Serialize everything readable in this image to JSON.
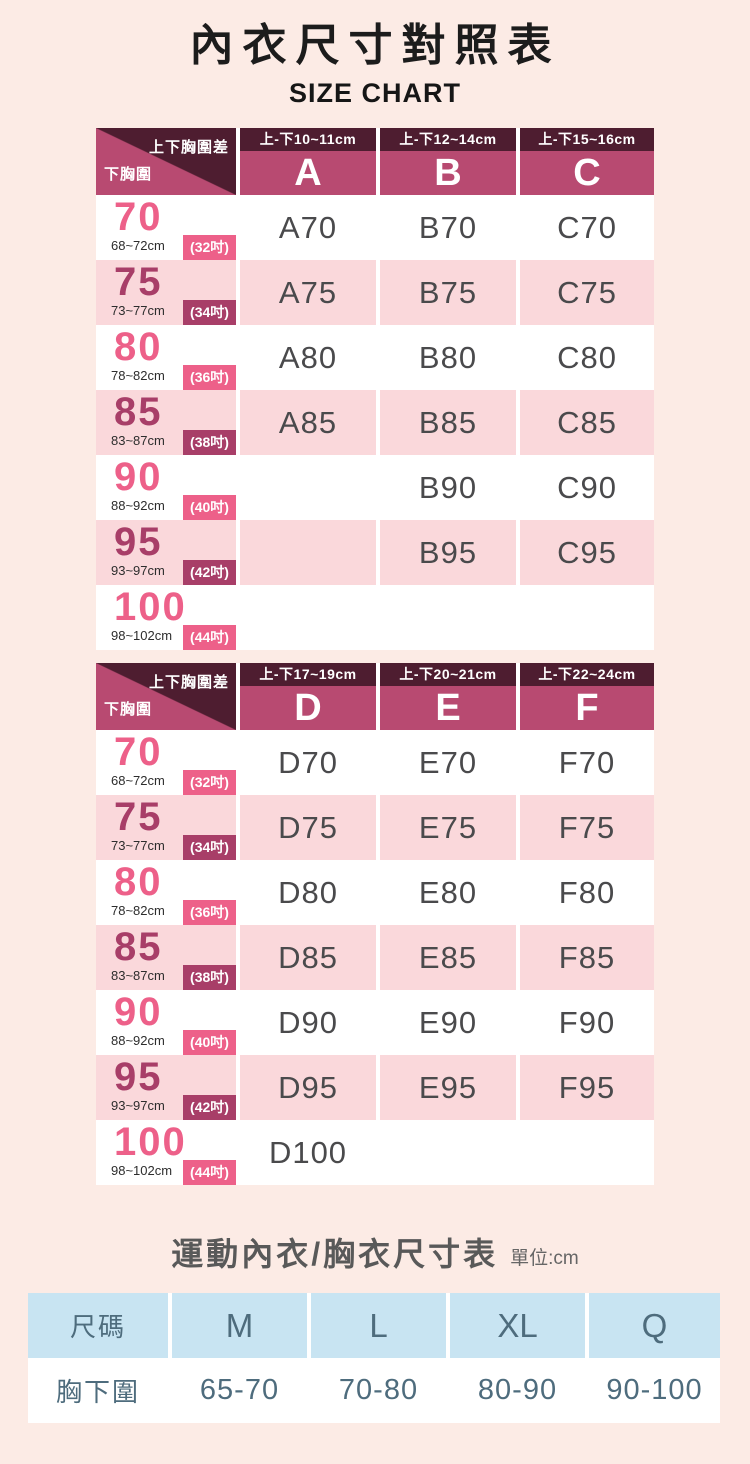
{
  "page": {
    "title": "內衣尺寸對照表",
    "subtitle": "SIZE CHART"
  },
  "colors": {
    "page_bg": "#fcebe5",
    "dark_maroon": "#4e1d30",
    "magenta": "#b84a71",
    "rose": "#ed6089",
    "deep_rose": "#a83e68",
    "pink_row": "#fad8db",
    "cell_text": "#4a4a4c",
    "blue_header": "#c8e4f2",
    "slate_text": "#4e6c7d"
  },
  "chart_data": [
    {
      "type": "table",
      "title": "內衣尺寸對照表 SIZE CHART (A~C)",
      "corner_top": "上下胸圍差",
      "corner_bottom": "下胸圍",
      "columns": [
        {
          "range": "上-下10~11cm",
          "cup": "A"
        },
        {
          "range": "上-下12~14cm",
          "cup": "B"
        },
        {
          "range": "上-下15~16cm",
          "cup": "C"
        }
      ],
      "rows": [
        {
          "band": "70",
          "range": "68~72cm",
          "inch": "(32吋)",
          "cells": [
            "A70",
            "B70",
            "C70"
          ]
        },
        {
          "band": "75",
          "range": "73~77cm",
          "inch": "(34吋)",
          "cells": [
            "A75",
            "B75",
            "C75"
          ]
        },
        {
          "band": "80",
          "range": "78~82cm",
          "inch": "(36吋)",
          "cells": [
            "A80",
            "B80",
            "C80"
          ]
        },
        {
          "band": "85",
          "range": "83~87cm",
          "inch": "(38吋)",
          "cells": [
            "A85",
            "B85",
            "C85"
          ]
        },
        {
          "band": "90",
          "range": "88~92cm",
          "inch": "(40吋)",
          "cells": [
            "",
            "B90",
            "C90"
          ]
        },
        {
          "band": "95",
          "range": "93~97cm",
          "inch": "(42吋)",
          "cells": [
            "",
            "B95",
            "C95"
          ]
        },
        {
          "band": "100",
          "range": "98~102cm",
          "inch": "(44吋)",
          "cells": [
            "",
            "",
            ""
          ]
        }
      ]
    },
    {
      "type": "table",
      "title": "內衣尺寸對照表 SIZE CHART (D~F)",
      "corner_top": "上下胸圍差",
      "corner_bottom": "下胸圍",
      "columns": [
        {
          "range": "上-下17~19cm",
          "cup": "D"
        },
        {
          "range": "上-下20~21cm",
          "cup": "E"
        },
        {
          "range": "上-下22~24cm",
          "cup": "F"
        }
      ],
      "rows": [
        {
          "band": "70",
          "range": "68~72cm",
          "inch": "(32吋)",
          "cells": [
            "D70",
            "E70",
            "F70"
          ]
        },
        {
          "band": "75",
          "range": "73~77cm",
          "inch": "(34吋)",
          "cells": [
            "D75",
            "E75",
            "F75"
          ]
        },
        {
          "band": "80",
          "range": "78~82cm",
          "inch": "(36吋)",
          "cells": [
            "D80",
            "E80",
            "F80"
          ]
        },
        {
          "band": "85",
          "range": "83~87cm",
          "inch": "(38吋)",
          "cells": [
            "D85",
            "E85",
            "F85"
          ]
        },
        {
          "band": "90",
          "range": "88~92cm",
          "inch": "(40吋)",
          "cells": [
            "D90",
            "E90",
            "F90"
          ]
        },
        {
          "band": "95",
          "range": "93~97cm",
          "inch": "(42吋)",
          "cells": [
            "D95",
            "E95",
            "F95"
          ]
        },
        {
          "band": "100",
          "range": "98~102cm",
          "inch": "(44吋)",
          "cells": [
            "D100",
            "",
            ""
          ]
        }
      ]
    },
    {
      "type": "table",
      "title": "運動內衣/胸衣尺寸表",
      "unit": "單位:cm",
      "headers": [
        "尺碼",
        "M",
        "L",
        "XL",
        "Q"
      ],
      "row_label": "胸下圍",
      "values": [
        "65-70",
        "70-80",
        "80-90",
        "90-100"
      ]
    }
  ]
}
